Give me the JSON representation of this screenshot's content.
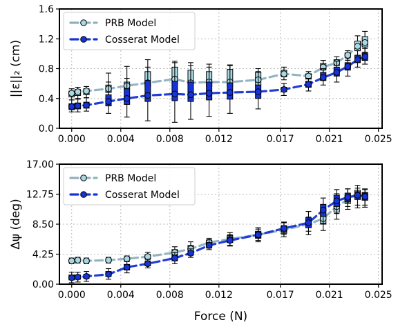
{
  "chart_data": [
    {
      "type": "box",
      "ylabel": "||ε||₂ (cm)",
      "xlabel": "",
      "xlim": [
        -0.001,
        0.0253
      ],
      "ylim": [
        0.0,
        1.6
      ],
      "x_ticks": [
        0.0,
        0.004,
        0.008,
        0.012,
        0.017,
        0.021,
        0.025
      ],
      "x_tick_labels": [
        "0.000",
        "0.004",
        "0.008",
        "0.012",
        "0.017",
        "0.021",
        "0.025"
      ],
      "y_ticks": [
        0.0,
        0.4,
        0.8,
        1.2,
        1.6
      ],
      "y_tick_labels": [
        "0.0",
        "0.4",
        "0.8",
        "1.2",
        "1.6"
      ],
      "grid": true,
      "legend_position": "top-left",
      "series": [
        {
          "name": "PRB Model",
          "color": "#a8d8e4",
          "line_color": "#8fb0bf",
          "x": [
            0.0,
            0.0005,
            0.0012,
            0.003,
            0.0045,
            0.0062,
            0.0084,
            0.0097,
            0.0112,
            0.0129,
            0.0152,
            0.0173,
            0.0193,
            0.0205,
            0.0216,
            0.0225,
            0.0233,
            0.0239
          ],
          "median": [
            0.47,
            0.49,
            0.5,
            0.53,
            0.57,
            0.61,
            0.66,
            0.61,
            0.62,
            0.62,
            0.65,
            0.73,
            0.7,
            0.82,
            0.88,
            0.98,
            1.1,
            1.15
          ],
          "q1": [
            0.42,
            0.44,
            0.45,
            0.48,
            0.52,
            0.56,
            0.6,
            0.55,
            0.56,
            0.56,
            0.58,
            0.69,
            0.66,
            0.78,
            0.84,
            0.95,
            1.04,
            1.09
          ],
          "q3": [
            0.5,
            0.52,
            0.53,
            0.58,
            0.62,
            0.76,
            0.82,
            0.78,
            0.76,
            0.79,
            0.75,
            0.78,
            0.73,
            0.87,
            0.92,
            1.01,
            1.17,
            1.23
          ],
          "whisker_low": [
            0.38,
            0.4,
            0.41,
            0.44,
            0.48,
            0.5,
            0.52,
            0.49,
            0.5,
            0.5,
            0.53,
            0.65,
            0.61,
            0.74,
            0.79,
            0.91,
            0.98,
            1.02
          ],
          "whisker_high": [
            0.53,
            0.55,
            0.56,
            0.62,
            0.67,
            0.82,
            0.88,
            0.84,
            0.82,
            0.85,
            0.8,
            0.82,
            0.76,
            0.91,
            0.96,
            1.04,
            1.24,
            1.3
          ]
        },
        {
          "name": "Cosserat Model",
          "color": "#1533d6",
          "line_color": "#1533d6",
          "x": [
            0.0,
            0.0005,
            0.0012,
            0.003,
            0.0045,
            0.0062,
            0.0084,
            0.0097,
            0.0112,
            0.0129,
            0.0152,
            0.0173,
            0.0193,
            0.0205,
            0.0216,
            0.0225,
            0.0233,
            0.0239
          ],
          "median": [
            0.29,
            0.3,
            0.31,
            0.36,
            0.4,
            0.44,
            0.46,
            0.45,
            0.47,
            0.48,
            0.49,
            0.52,
            0.59,
            0.68,
            0.75,
            0.83,
            0.92,
            0.96
          ],
          "q1": [
            0.25,
            0.26,
            0.27,
            0.3,
            0.32,
            0.36,
            0.37,
            0.36,
            0.38,
            0.39,
            0.4,
            0.49,
            0.55,
            0.64,
            0.7,
            0.78,
            0.88,
            0.91
          ],
          "q3": [
            0.33,
            0.34,
            0.35,
            0.45,
            0.53,
            0.64,
            0.63,
            0.62,
            0.62,
            0.61,
            0.58,
            0.55,
            0.63,
            0.75,
            0.82,
            0.88,
            0.98,
            1.01
          ],
          "whisker_low": [
            0.22,
            0.22,
            0.23,
            0.2,
            0.15,
            0.1,
            0.08,
            0.12,
            0.16,
            0.2,
            0.26,
            0.44,
            0.5,
            0.58,
            0.62,
            0.7,
            0.82,
            0.86
          ],
          "whisker_high": [
            0.38,
            0.39,
            0.41,
            0.74,
            0.83,
            0.92,
            0.9,
            0.88,
            0.86,
            0.84,
            0.76,
            0.6,
            0.67,
            0.8,
            0.9,
            0.93,
            1.04,
            1.07
          ]
        }
      ]
    },
    {
      "type": "box",
      "ylabel": "Δψ (deg)",
      "xlabel": "Force (N)",
      "xlim": [
        -0.001,
        0.0253
      ],
      "ylim": [
        0.0,
        17.0
      ],
      "x_ticks": [
        0.0,
        0.004,
        0.008,
        0.012,
        0.017,
        0.021,
        0.025
      ],
      "x_tick_labels": [
        "0.000",
        "0.004",
        "0.008",
        "0.012",
        "0.017",
        "0.021",
        "0.025"
      ],
      "y_ticks": [
        0.0,
        4.25,
        8.5,
        12.75,
        17.0
      ],
      "y_tick_labels": [
        "0.00",
        "4.25",
        "8.50",
        "12.75",
        "17.00"
      ],
      "grid": true,
      "legend_position": "top-left",
      "series": [
        {
          "name": "PRB Model",
          "color": "#a8d8e4",
          "line_color": "#8fb0bf",
          "x": [
            0.0,
            0.0005,
            0.0012,
            0.003,
            0.0045,
            0.0062,
            0.0084,
            0.0097,
            0.0112,
            0.0129,
            0.0152,
            0.0173,
            0.0193,
            0.0205,
            0.0216,
            0.0225,
            0.0233,
            0.0239
          ],
          "median": [
            3.3,
            3.4,
            3.3,
            3.4,
            3.6,
            3.9,
            4.5,
            5.0,
            5.9,
            6.4,
            7.0,
            7.7,
            8.5,
            9.3,
            11.0,
            12.0,
            12.7,
            12.5
          ],
          "q1": [
            3.1,
            3.2,
            3.1,
            3.2,
            3.4,
            3.6,
            4.1,
            4.6,
            5.5,
            5.9,
            6.5,
            7.2,
            8.0,
            8.5,
            10.2,
            11.4,
            12.0,
            11.9
          ],
          "q3": [
            3.5,
            3.6,
            3.5,
            3.6,
            3.8,
            4.2,
            4.9,
            5.5,
            6.2,
            6.9,
            7.5,
            8.2,
            9.0,
            10.0,
            11.8,
            12.6,
            13.3,
            13.0
          ],
          "whisker_low": [
            2.9,
            3.0,
            2.9,
            3.0,
            3.2,
            3.3,
            3.7,
            4.1,
            5.1,
            5.4,
            6.0,
            6.7,
            7.5,
            7.6,
            9.2,
            10.6,
            10.8,
            10.9
          ],
          "whisker_high": [
            3.7,
            3.8,
            3.7,
            3.8,
            4.0,
            4.5,
            5.3,
            6.0,
            6.5,
            7.3,
            8.0,
            8.7,
            9.5,
            11.0,
            12.8,
            13.5,
            14.0,
            13.5
          ]
        },
        {
          "name": "Cosserat Model",
          "color": "#1533d6",
          "line_color": "#1533d6",
          "x": [
            0.0,
            0.0005,
            0.0012,
            0.003,
            0.0045,
            0.0062,
            0.0084,
            0.0097,
            0.0112,
            0.0129,
            0.0152,
            0.0173,
            0.0193,
            0.0205,
            0.0216,
            0.0225,
            0.0233,
            0.0239
          ],
          "median": [
            0.9,
            1.0,
            1.1,
            1.4,
            2.4,
            2.9,
            3.7,
            4.4,
            5.5,
            6.2,
            7.0,
            7.9,
            8.7,
            10.5,
            11.8,
            12.3,
            12.6,
            12.4
          ],
          "q1": [
            0.6,
            0.7,
            0.8,
            1.1,
            2.0,
            2.6,
            3.3,
            4.1,
            5.2,
            5.9,
            6.6,
            7.5,
            8.0,
            9.6,
            11.0,
            11.7,
            12.0,
            11.9
          ],
          "q3": [
            1.3,
            1.3,
            1.4,
            1.8,
            2.8,
            3.2,
            4.1,
            4.7,
            5.9,
            6.6,
            7.4,
            8.3,
            9.4,
            11.3,
            12.6,
            12.9,
            13.1,
            12.9
          ],
          "whisker_low": [
            0.2,
            0.3,
            0.4,
            0.7,
            1.6,
            2.3,
            2.9,
            3.8,
            4.9,
            5.5,
            6.2,
            7.0,
            7.0,
            8.6,
            10.0,
            11.0,
            11.2,
            11.2
          ],
          "whisker_high": [
            1.7,
            1.7,
            1.8,
            2.2,
            3.2,
            3.5,
            4.5,
            5.0,
            6.3,
            7.0,
            7.8,
            8.8,
            10.3,
            12.2,
            13.4,
            13.5,
            13.6,
            13.4
          ]
        }
      ]
    }
  ]
}
